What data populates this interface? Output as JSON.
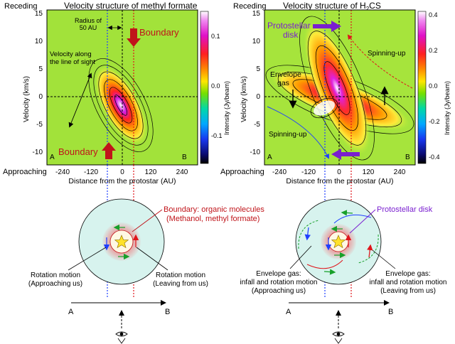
{
  "colors": {
    "boundary_red": "#c0141a",
    "disk_purple": "#7a1fd0",
    "axis_blue": "#1f3fff",
    "spin_green": "#18a02a",
    "star_yellow": "#ffe22a",
    "ring_pink": "#e29a9a",
    "outer_cyan": "#d7f3ee"
  },
  "left_panel": {
    "title": "Velocity structure of methyl formate",
    "corner_top": "Receding",
    "corner_bottom": "Approaching",
    "ylabel": "Velocity (km/s)",
    "xlabel": "Distance from the protostar (AU)",
    "yticks": [
      "15",
      "10",
      "5",
      "0",
      "-5",
      "-10"
    ],
    "xticks": [
      "-240",
      "-120",
      "0",
      "120",
      "240"
    ],
    "radius_label_1": "Radius of",
    "radius_label_2": "50 AU",
    "boundary_top": "Boundary",
    "boundary_bottom": "Boundary",
    "los_label_1": "Velocity along",
    "los_label_2": "the line of sight",
    "corner_a": "A",
    "corner_b": "B",
    "colorbar_label": "Intensity (Jy/beam)",
    "colorbar_ticks": [
      "0.1",
      "0.0",
      "-0.1"
    ]
  },
  "right_panel": {
    "title_prefix": "Velocity structure of H",
    "title_sub": "2",
    "title_suffix": "CS",
    "corner_top": "Receding",
    "corner_bottom": "Approaching",
    "ylabel": "Velocity (km/s)",
    "xlabel": "Distance from the protostar (AU)",
    "yticks": [
      "15",
      "10",
      "5",
      "0",
      "-5",
      "-10"
    ],
    "xticks": [
      "-240",
      "-120",
      "0",
      "120",
      "240"
    ],
    "disk_label_1": "Protostellar",
    "disk_label_2": "disk",
    "envelope_label_1": "Envelope",
    "envelope_label_2": "gas",
    "spin_up_top": "Spinning-up",
    "spin_up_bottom": "Spinning-up",
    "corner_a": "A",
    "corner_b": "B",
    "colorbar_label": "Intensity (Jy/beam)",
    "colorbar_ticks": [
      "0.4",
      "0.2",
      "0.0",
      "-0.2",
      "-0.4"
    ]
  },
  "left_diagram": {
    "boundary_note_1": "Boundary: organic molecules",
    "boundary_note_2": "(Methanol, methyl formate)",
    "rot_left_1": "Rotation motion",
    "rot_left_2": "(Approaching us)",
    "rot_right_1": "Rotation motion",
    "rot_right_2": "(Leaving from us)",
    "axis_a": "A",
    "axis_b": "B"
  },
  "right_diagram": {
    "disk_label": "Protostellar disk",
    "env_left_1": "Envelope gas:",
    "env_left_2": "infall and rotation motion",
    "env_left_3": "(Approaching us)",
    "env_right_1": "Envelope gas:",
    "env_right_2": "infall and rotation motion",
    "env_right_3": "(Leaving from us)",
    "axis_a": "A",
    "axis_b": "B"
  }
}
